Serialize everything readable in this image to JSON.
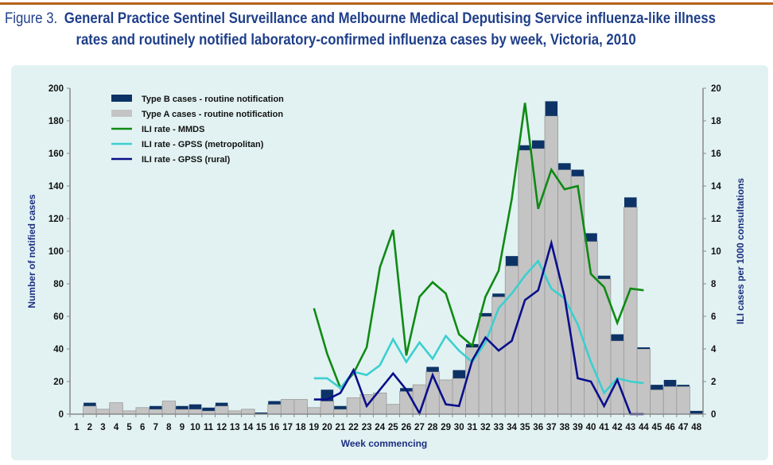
{
  "title": {
    "figure_label": "Figure 3.",
    "line1": "General Practice Sentinel Surveillance and Melbourne Medical Deputising Service influenza-like illness",
    "line2": "rates and routinely notified laboratory-confirmed influenza cases by week, Victoria, 2010"
  },
  "colors": {
    "header_rule": "#b8621b",
    "title": "#1f3f8a",
    "panel_bg": "#e2f2f2",
    "type_b": "#0d3366",
    "type_a": "#c4c4c4",
    "mmds": "#0f8a14",
    "gpss_metro": "#3ccfd0",
    "gpss_rural": "#0a0f8a"
  },
  "chart_data": {
    "type": "bar",
    "title": "General Practice Sentinel Surveillance and Melbourne Medical Deputising Service influenza-like illness rates and routinely notified laboratory-confirmed influenza cases by week, Victoria, 2010",
    "xlabel": "Week commencing",
    "ylabel": "Number of notified cases",
    "y2label": "ILI cases per 1000 consultations",
    "ylim": [
      0,
      200
    ],
    "y2lim": [
      0,
      20
    ],
    "yticks": [
      0,
      20,
      40,
      60,
      80,
      100,
      120,
      140,
      160,
      180,
      200
    ],
    "y2ticks": [
      0,
      2,
      4,
      6,
      8,
      10,
      12,
      14,
      16,
      18,
      20
    ],
    "categories": [
      "1",
      "2",
      "3",
      "4",
      "5",
      "6",
      "7",
      "8",
      "9",
      "10",
      "11",
      "12",
      "13",
      "14",
      "15",
      "16",
      "17",
      "18",
      "19",
      "20",
      "21",
      "22",
      "23",
      "24",
      "25",
      "26",
      "27",
      "28",
      "29",
      "30",
      "31",
      "32",
      "33",
      "34",
      "35",
      "36",
      "37",
      "38",
      "39",
      "40",
      "41",
      "42",
      "43",
      "44",
      "45",
      "46",
      "47",
      "48"
    ],
    "legend_position": "top-left",
    "grid": false,
    "stacked_bars": [
      {
        "name": "Type A cases - routine notification",
        "axis": "left",
        "values": [
          0,
          5,
          3,
          7,
          2,
          4,
          3,
          8,
          3,
          3,
          2,
          5,
          2,
          3,
          0,
          6,
          9,
          9,
          4,
          8,
          3,
          10,
          12,
          13,
          6,
          14,
          18,
          26,
          21,
          22,
          41,
          60,
          72,
          91,
          162,
          163,
          183,
          150,
          146,
          106,
          83,
          45,
          127,
          40,
          15,
          17,
          17,
          0
        ]
      },
      {
        "name": "Type B cases - routine notification",
        "axis": "left",
        "values": [
          0,
          2,
          0,
          0,
          0,
          0,
          2,
          0,
          2,
          3,
          2,
          2,
          0,
          0,
          1,
          2,
          0,
          0,
          0,
          7,
          2,
          0,
          0,
          0,
          0,
          2,
          0,
          3,
          0,
          5,
          2,
          2,
          2,
          6,
          3,
          5,
          9,
          4,
          4,
          5,
          2,
          4,
          6,
          1,
          3,
          4,
          1,
          2
        ]
      }
    ],
    "series": [
      {
        "name": "ILI rate - MMDS",
        "axis": "right",
        "start_week": 19,
        "values": [
          6.5,
          3.7,
          1.6,
          2.5,
          4.1,
          9.0,
          11.3,
          3.6,
          7.2,
          8.1,
          7.4,
          4.9,
          4.2,
          7.2,
          8.8,
          13.2,
          19.1,
          12.6,
          15.0,
          13.8,
          14.0,
          8.6,
          7.8,
          5.6,
          7.7,
          7.6
        ]
      },
      {
        "name": "ILI rate - GPSS (metropolitan)",
        "axis": "right",
        "start_week": 19,
        "values": [
          2.2,
          2.2,
          1.6,
          2.6,
          2.4,
          3.0,
          4.6,
          3.2,
          4.4,
          3.4,
          4.8,
          3.9,
          3.2,
          4.4,
          6.5,
          7.4,
          8.5,
          9.4,
          7.7,
          7.1,
          5.5,
          3.2,
          1.3,
          2.2,
          2.0,
          1.9
        ]
      },
      {
        "name": "ILI rate - GPSS (rural)",
        "axis": "right",
        "start_week": 19,
        "values": [
          0.9,
          0.9,
          1.3,
          2.7,
          0.5,
          1.5,
          2.5,
          1.5,
          0.05,
          2.4,
          0.6,
          0.5,
          3.3,
          4.7,
          3.9,
          4.5,
          7.0,
          7.6,
          10.5,
          7.2,
          2.2,
          2.0,
          0.5,
          2.1,
          0.0,
          0.0
        ]
      }
    ],
    "legend": [
      {
        "label": "Type B cases - routine notification",
        "kind": "bar",
        "key": "type_b"
      },
      {
        "label": "Type A cases - routine notification",
        "kind": "bar",
        "key": "type_a"
      },
      {
        "label": "ILI rate - MMDS",
        "kind": "line",
        "key": "mmds"
      },
      {
        "label": "ILI rate - GPSS (metropolitan)",
        "kind": "line",
        "key": "gpss_metro"
      },
      {
        "label": "ILI rate - GPSS (rural)",
        "kind": "line",
        "key": "gpss_rural"
      }
    ]
  }
}
